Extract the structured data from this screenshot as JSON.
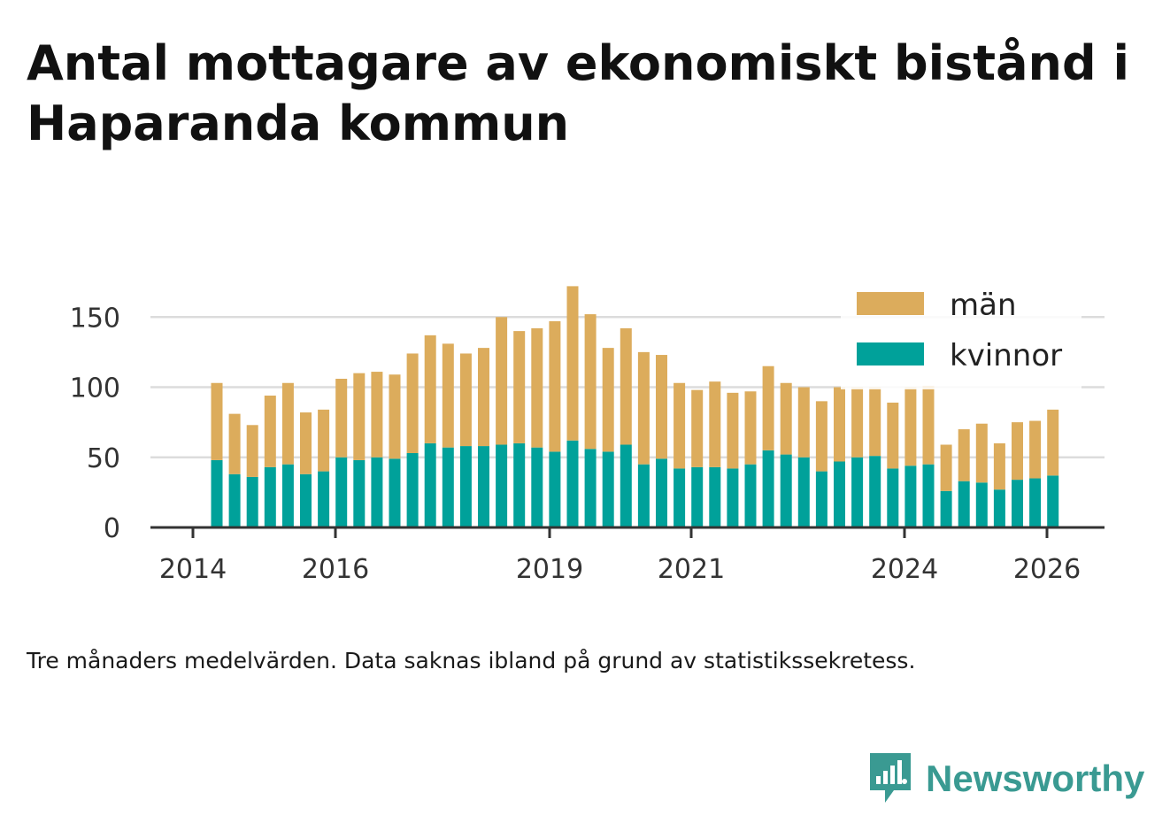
{
  "title": "Antal mottagare av ekonomiskt bistånd i Haparanda kommun",
  "note": "Tre månaders medelvärden. Data saknas ibland på grund av statistikssekretess.",
  "brand": {
    "name": "Newsworthy",
    "icon": "newsworthy-bar-chart-icon",
    "color": "#3a9a92"
  },
  "chart_data": {
    "type": "bar",
    "stacked": true,
    "x_axis_labels": [
      "2014",
      "2016",
      "2019",
      "2021",
      "2024",
      "2026"
    ],
    "y_ticks": [
      0,
      50,
      100,
      150
    ],
    "ylim": [
      0,
      175
    ],
    "grid": true,
    "legend_position": "top-right",
    "colors": {
      "kvinnor": "#00a19a",
      "män": "#dcac5c"
    },
    "categories": [
      "2014-Q2",
      "2014-Q3",
      "2014-Q4",
      "2015-Q1",
      "2015-Q2",
      "2015-Q3",
      "2015-Q4",
      "2016-Q1",
      "2016-Q2",
      "2016-Q3",
      "2016-Q4",
      "2017-Q1",
      "2017-Q2",
      "2017-Q3",
      "2017-Q4",
      "2018-Q1",
      "2018-Q2",
      "2018-Q3",
      "2018-Q4",
      "2019-Q1",
      "2019-Q2",
      "2019-Q3",
      "2019-Q4",
      "2020-Q1",
      "2020-Q2",
      "2020-Q3",
      "2020-Q4",
      "2021-Q1",
      "2021-Q2",
      "2021-Q3",
      "2021-Q4",
      "2022-Q1",
      "2022-Q2",
      "2022-Q3",
      "2022-Q4",
      "2023-Q1",
      "2023-Q2",
      "2023-Q3",
      "2023-Q4",
      "2024-Q1",
      "2024-Q2",
      "2024-Q3",
      "2024-Q4",
      "2025-Q1",
      "2025-Q2",
      "2025-Q3",
      "2025-Q4",
      "2026-Q1"
    ],
    "series": [
      {
        "name": "kvinnor",
        "values": [
          48,
          38,
          36,
          43,
          45,
          38,
          40,
          50,
          48,
          50,
          49,
          53,
          60,
          57,
          58,
          58,
          59,
          60,
          57,
          54,
          62,
          56,
          54,
          59,
          45,
          49,
          42,
          43,
          43,
          42,
          45,
          55,
          52,
          50,
          40,
          47,
          50,
          51,
          42,
          44,
          45,
          26,
          33,
          32,
          27,
          34,
          35,
          37
        ]
      },
      {
        "name": "män",
        "values": [
          55,
          43,
          37,
          51,
          58,
          44,
          44,
          56,
          62,
          61,
          60,
          71,
          77,
          74,
          66,
          70,
          91,
          80,
          85,
          93,
          110,
          96,
          74,
          83,
          80,
          74,
          61,
          55,
          61,
          54,
          52,
          60,
          51,
          50,
          50,
          53,
          50,
          49,
          47,
          56,
          56,
          33,
          37,
          42,
          33,
          41,
          41,
          47
        ]
      }
    ]
  }
}
